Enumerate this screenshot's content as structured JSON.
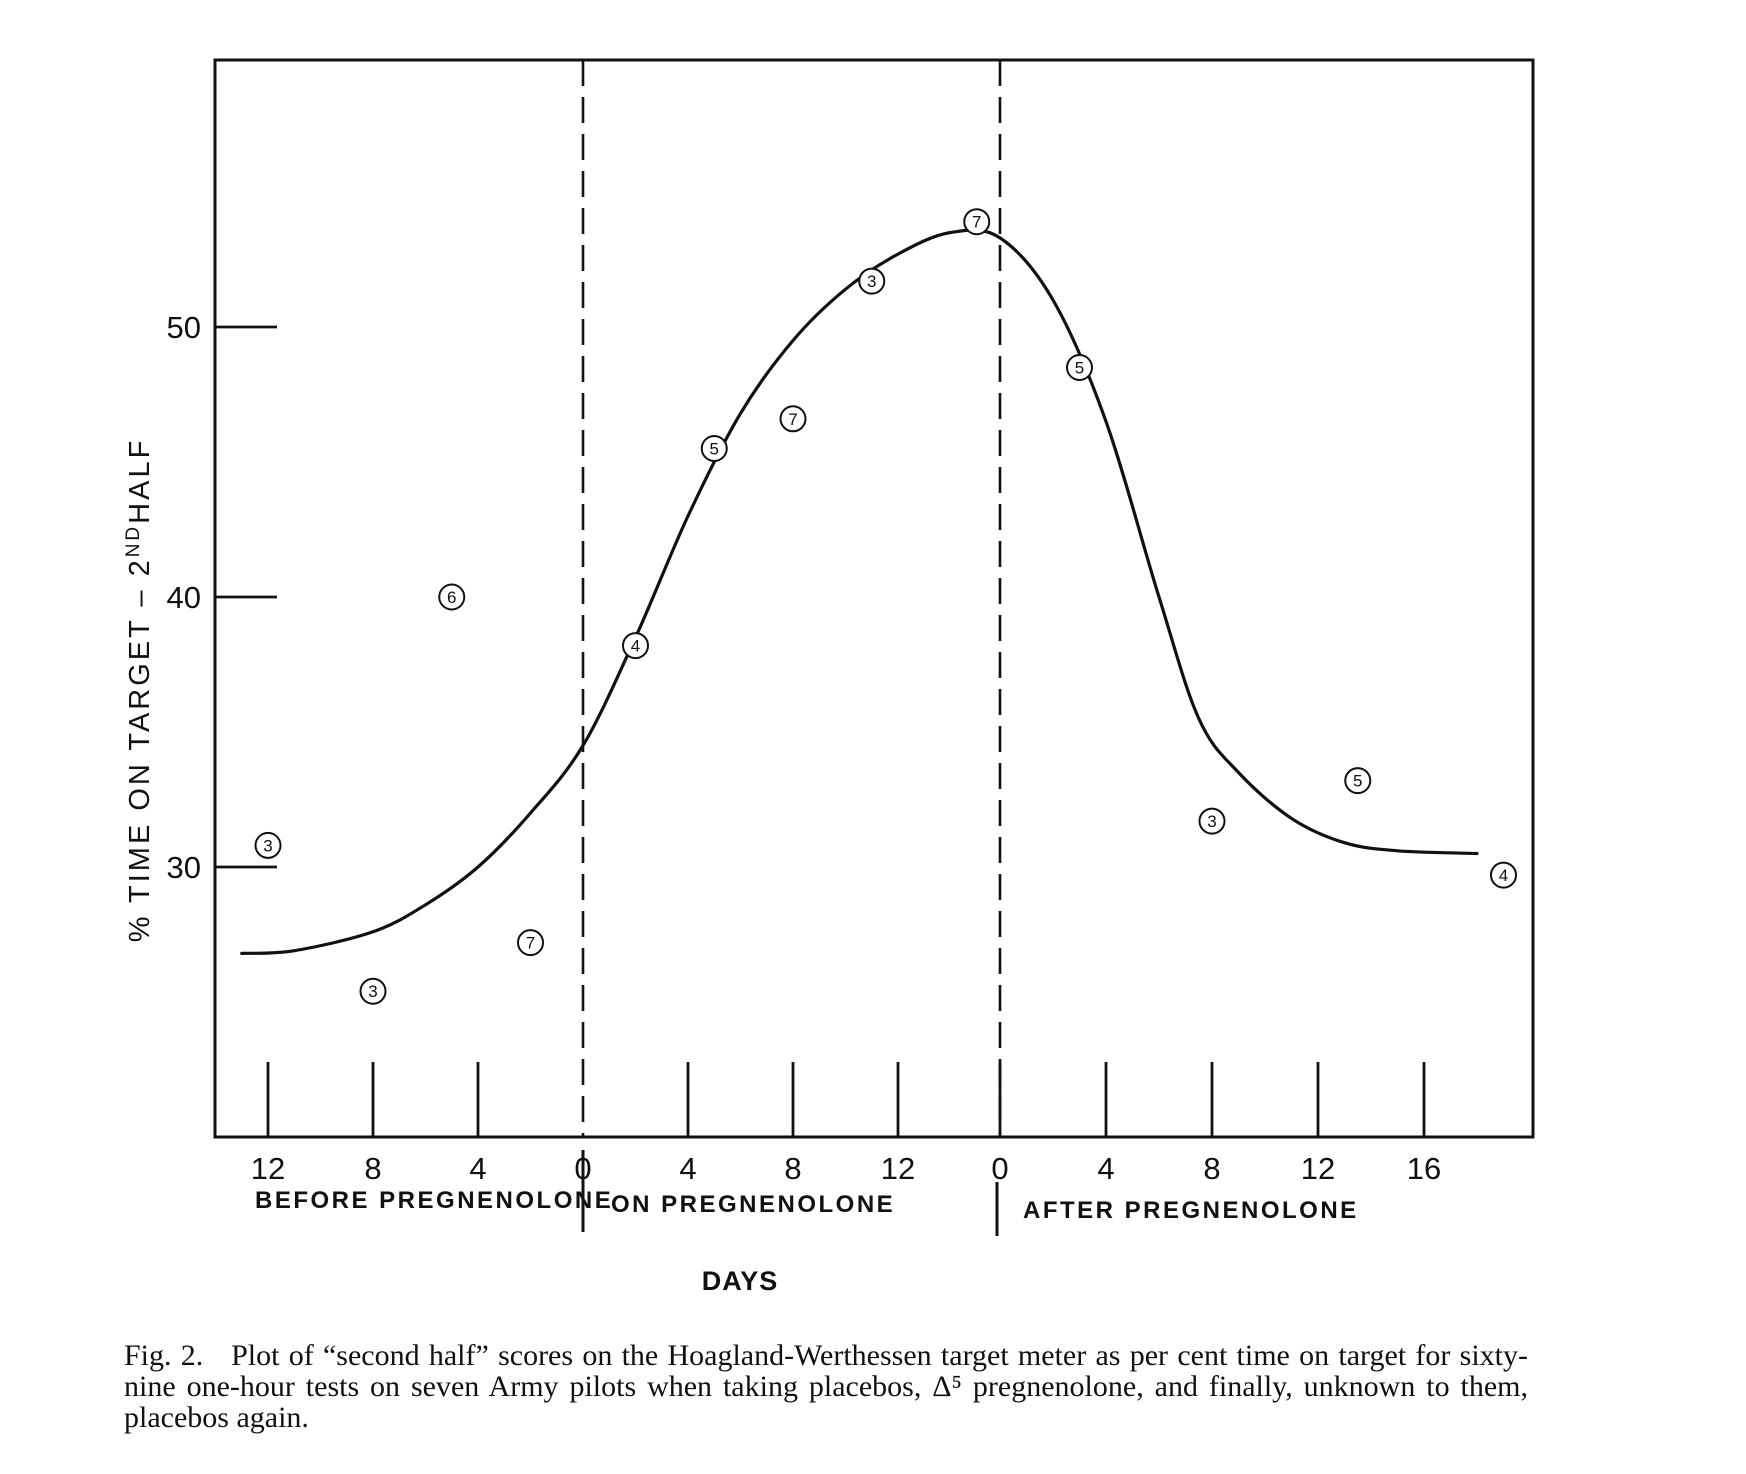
{
  "chart_data": {
    "type": "scatter",
    "ylabel": "% TIME ON TARGET - 2ND HALF",
    "ylabel_parts": [
      "% TIME ON TARGET – 2",
      "ND",
      "HALF"
    ],
    "xlabel": "DAYS",
    "ylim": [
      20,
      60
    ],
    "yticks": [
      30,
      40,
      50
    ],
    "grid": false,
    "phases": [
      {
        "name": "BEFORE PREGNENOLONE",
        "xlim": [
          13,
          0
        ],
        "ticks": [
          12,
          8,
          4,
          0
        ],
        "tick_labels": [
          "12",
          "8",
          "4",
          "0"
        ]
      },
      {
        "name": "ON PREGNENOLONE",
        "xlim": [
          0,
          15.6
        ],
        "ticks": [
          4,
          8,
          12
        ],
        "tick_labels": [
          "4",
          "8",
          "12"
        ]
      },
      {
        "name": "AFTER PREGNENOLONE",
        "xlim": [
          0,
          19.4
        ],
        "ticks": [
          0,
          4,
          8,
          12,
          16
        ],
        "tick_labels": [
          "0",
          "4",
          "8",
          "12",
          "16"
        ]
      }
    ],
    "series": [
      {
        "marker": "circled-n",
        "points": [
          {
            "phase": 0,
            "x": 12,
            "y": 30.8,
            "n": "3"
          },
          {
            "phase": 0,
            "x": 8,
            "y": 25.4,
            "n": "3"
          },
          {
            "phase": 0,
            "x": 5,
            "y": 40.0,
            "n": "6"
          },
          {
            "phase": 0,
            "x": 2,
            "y": 27.2,
            "n": "7"
          },
          {
            "phase": 1,
            "x": 2,
            "y": 38.2,
            "n": "4"
          },
          {
            "phase": 1,
            "x": 5,
            "y": 45.5,
            "n": "5"
          },
          {
            "phase": 1,
            "x": 8,
            "y": 46.6,
            "n": "7"
          },
          {
            "phase": 1,
            "x": 11,
            "y": 51.7,
            "n": "3"
          },
          {
            "phase": 1,
            "x": 15,
            "y": 53.9,
            "n": "7"
          },
          {
            "phase": 2,
            "x": 3,
            "y": 48.5,
            "n": "5"
          },
          {
            "phase": 2,
            "x": 8,
            "y": 31.7,
            "n": "3"
          },
          {
            "phase": 2,
            "x": 13.5,
            "y": 33.2,
            "n": "5"
          },
          {
            "phase": 2,
            "x": 19,
            "y": 29.7,
            "n": "4"
          }
        ]
      }
    ],
    "fitted_curve": [
      {
        "phase": 0,
        "x": 13,
        "y": 26.8
      },
      {
        "phase": 0,
        "x": 11,
        "y": 26.9
      },
      {
        "phase": 0,
        "x": 8,
        "y": 27.6
      },
      {
        "phase": 0,
        "x": 6,
        "y": 28.6
      },
      {
        "phase": 0,
        "x": 4,
        "y": 30.0
      },
      {
        "phase": 0,
        "x": 2,
        "y": 32.0
      },
      {
        "phase": 1,
        "x": 0,
        "y": 34.5
      },
      {
        "phase": 1,
        "x": 2,
        "y": 38.5
      },
      {
        "phase": 1,
        "x": 4,
        "y": 43.0
      },
      {
        "phase": 1,
        "x": 6,
        "y": 46.8
      },
      {
        "phase": 1,
        "x": 8,
        "y": 49.5
      },
      {
        "phase": 1,
        "x": 10,
        "y": 51.4
      },
      {
        "phase": 1,
        "x": 12,
        "y": 52.7
      },
      {
        "phase": 1,
        "x": 14,
        "y": 53.5
      },
      {
        "phase": 2,
        "x": 0,
        "y": 53.3
      },
      {
        "phase": 2,
        "x": 2,
        "y": 51.0
      },
      {
        "phase": 2,
        "x": 4,
        "y": 46.5
      },
      {
        "phase": 2,
        "x": 6,
        "y": 40.0
      },
      {
        "phase": 2,
        "x": 7.5,
        "y": 35.5
      },
      {
        "phase": 2,
        "x": 9,
        "y": 33.5
      },
      {
        "phase": 2,
        "x": 11,
        "y": 31.8
      },
      {
        "phase": 2,
        "x": 13,
        "y": 30.9
      },
      {
        "phase": 2,
        "x": 15,
        "y": 30.6
      },
      {
        "phase": 2,
        "x": 18,
        "y": 30.5
      }
    ]
  },
  "caption": {
    "fig_label": "Fig. 2.",
    "text": "Plot of “second half” scores on the Hoagland-Werthessen target meter as per cent time on target for sixty-nine one-hour tests on seven Army pilots when taking placebos, Δ⁵ pregnenolone, and finally, unknown to them, placebos again."
  }
}
